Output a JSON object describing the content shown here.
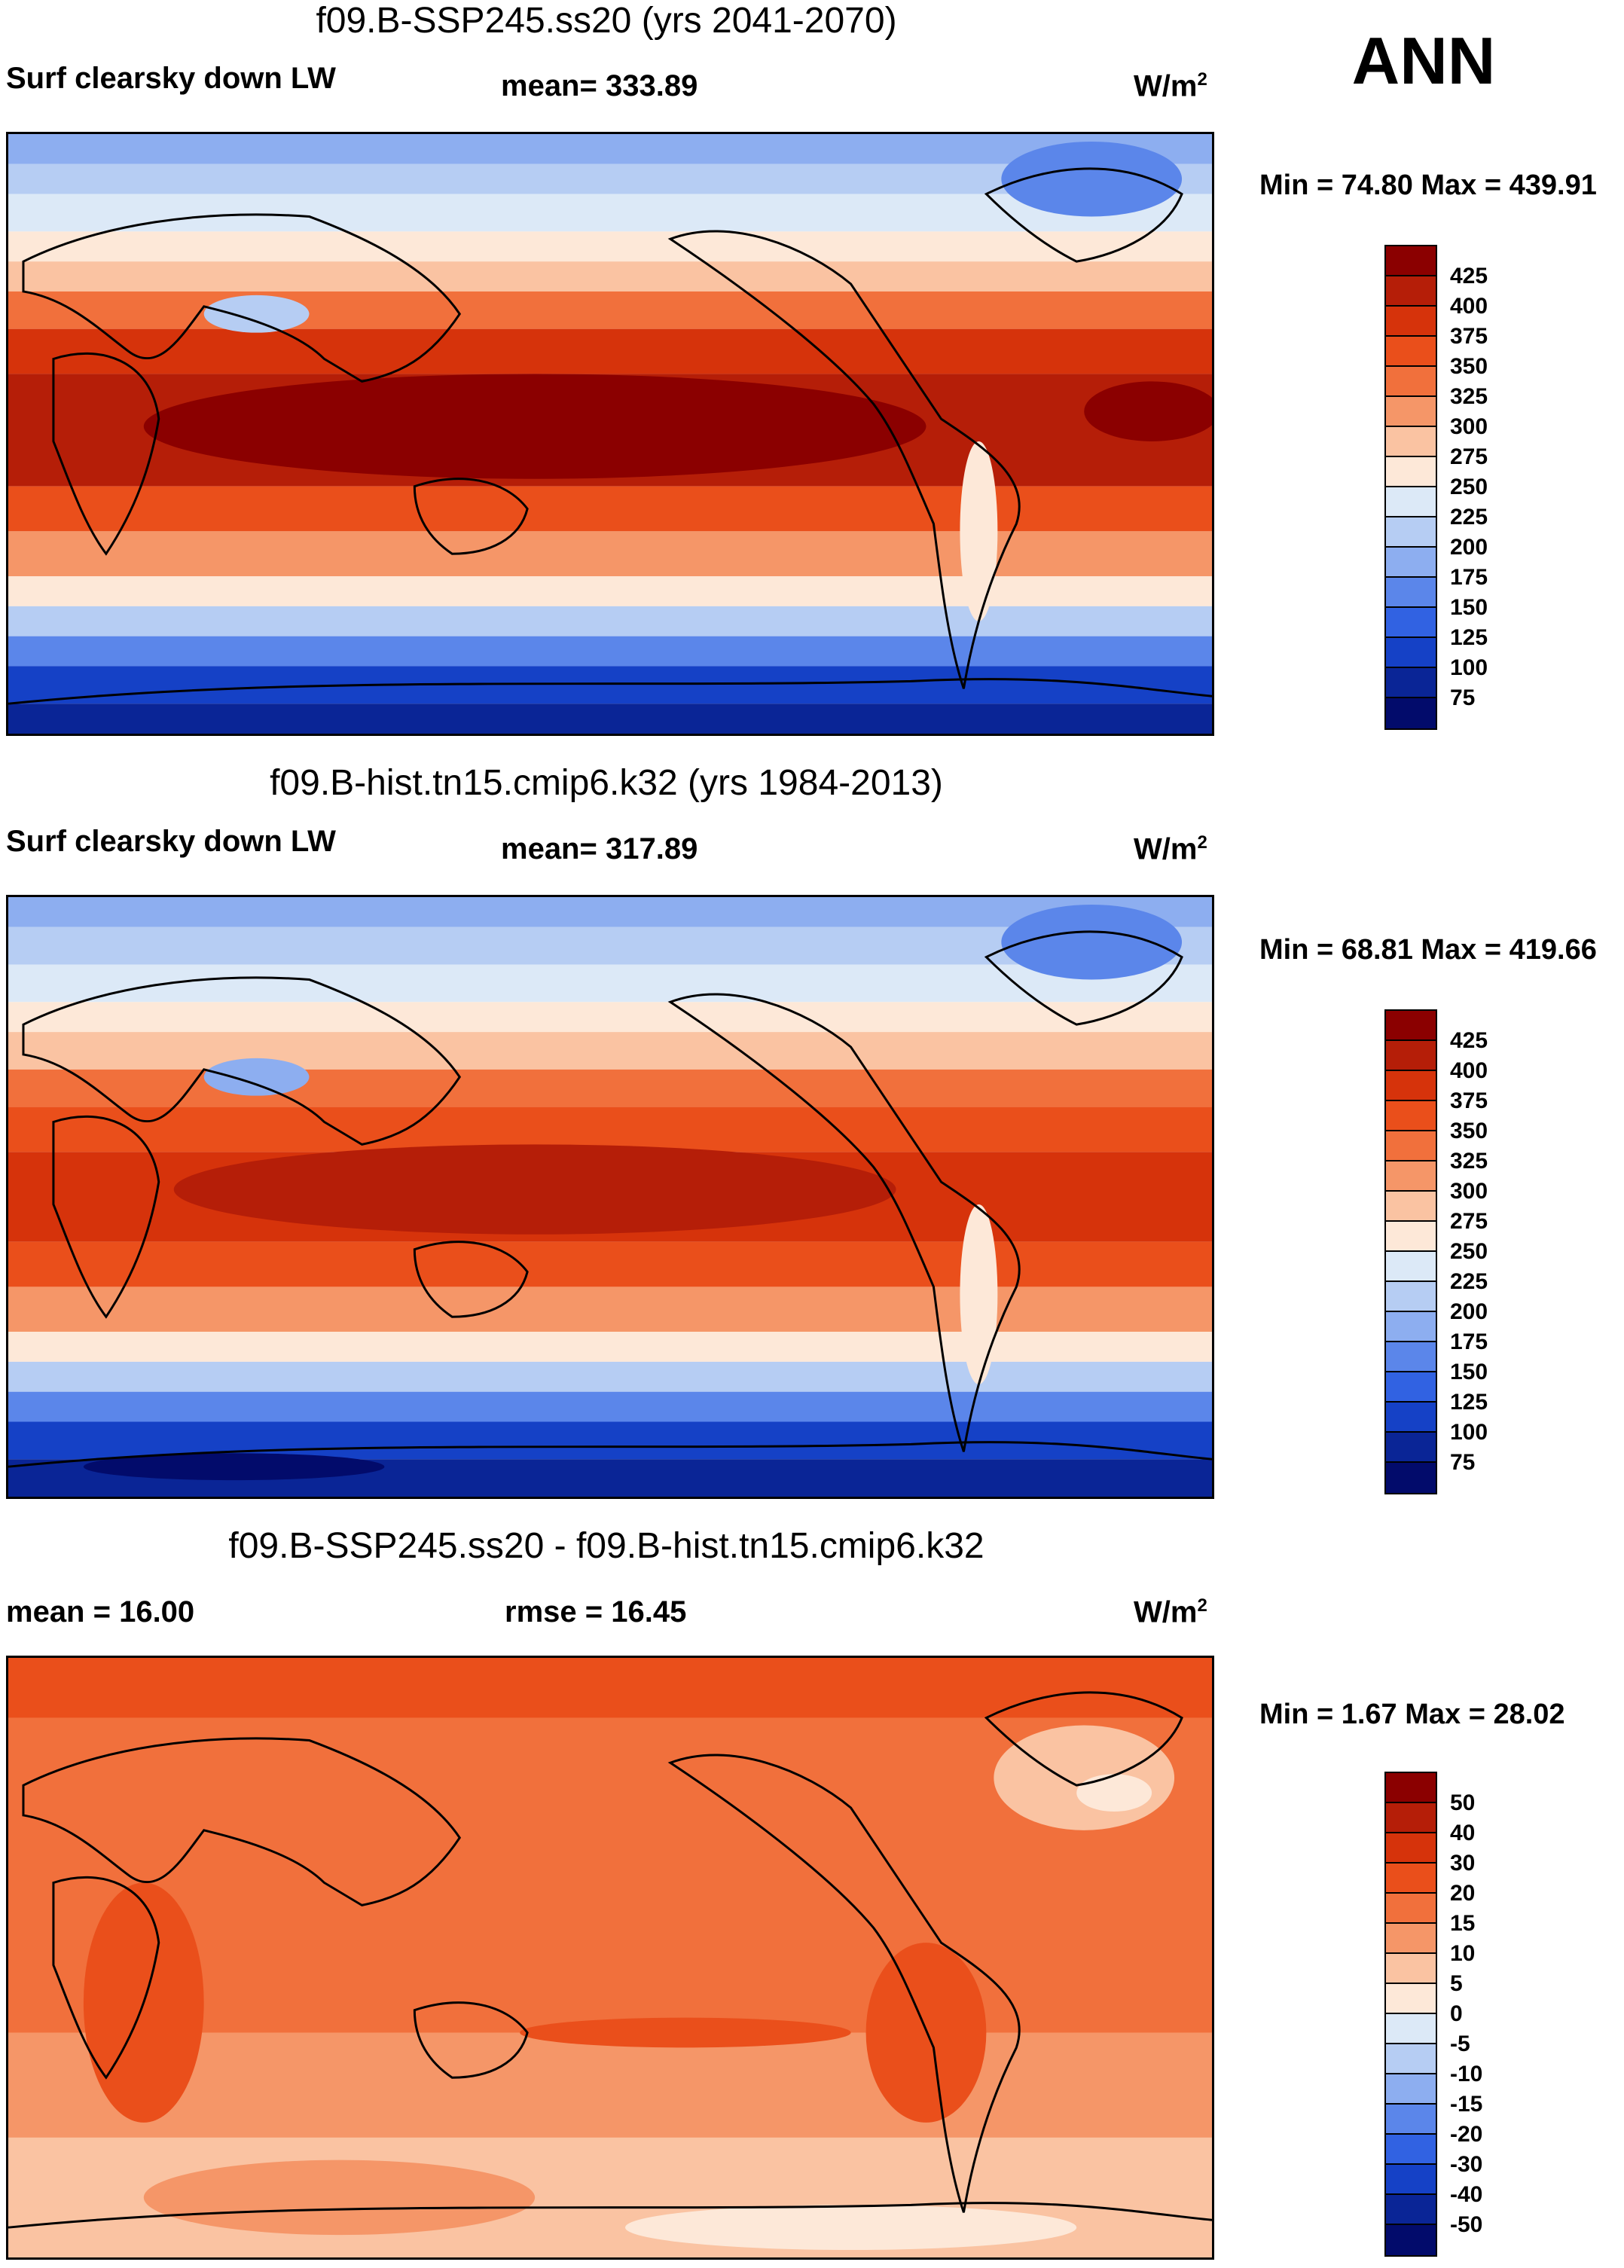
{
  "season": "ANN",
  "panels": [
    {
      "title": "f09.B-SSP245.ss20 (yrs 2041-2070)",
      "left_label": "Surf clearsky down LW",
      "center_label": "mean= 333.89",
      "units": "W/m",
      "units_exp": "2",
      "minmax": "Min =  74.80 Max = 439.91",
      "colorbar_ticks": [
        "425",
        "400",
        "375",
        "350",
        "325",
        "300",
        "275",
        "250",
        "225",
        "200",
        "175",
        "150",
        "125",
        "100",
        "75"
      ],
      "colorbar_colors": [
        "#8b0000",
        "#b51e08",
        "#d6330b",
        "#ea4f1b",
        "#f1703c",
        "#f59668",
        "#fac3a2",
        "#fde8d8",
        "#dce9f7",
        "#b6cdf3",
        "#8daef0",
        "#5b86ea",
        "#3162e2",
        "#1541c6",
        "#0a2596",
        "#020b6b"
      ]
    },
    {
      "title": "f09.B-hist.tn15.cmip6.k32 (yrs 1984-2013)",
      "left_label": "Surf clearsky down LW",
      "center_label": "mean= 317.89",
      "units": "W/m",
      "units_exp": "2",
      "minmax": "Min =  68.81 Max = 419.66",
      "colorbar_ticks": [
        "425",
        "400",
        "375",
        "350",
        "325",
        "300",
        "275",
        "250",
        "225",
        "200",
        "175",
        "150",
        "125",
        "100",
        "75"
      ],
      "colorbar_colors": [
        "#8b0000",
        "#b51e08",
        "#d6330b",
        "#ea4f1b",
        "#f1703c",
        "#f59668",
        "#fac3a2",
        "#fde8d8",
        "#dce9f7",
        "#b6cdf3",
        "#8daef0",
        "#5b86ea",
        "#3162e2",
        "#1541c6",
        "#0a2596",
        "#020b6b"
      ]
    },
    {
      "title": "f09.B-SSP245.ss20 - f09.B-hist.tn15.cmip6.k32",
      "left_label": "mean =  16.00",
      "center_label": "rmse =  16.45",
      "units": "W/m",
      "units_exp": "2",
      "minmax": "Min =   1.67 Max =  28.02",
      "colorbar_ticks": [
        "50",
        "40",
        "30",
        "20",
        "15",
        "10",
        "5",
        "0",
        "-5",
        "-10",
        "-15",
        "-20",
        "-30",
        "-40",
        "-50"
      ],
      "colorbar_colors": [
        "#8b0000",
        "#b51e08",
        "#d6330b",
        "#ea4f1b",
        "#f1703c",
        "#f59668",
        "#fac3a2",
        "#fde8d8",
        "#dce9f7",
        "#b6cdf3",
        "#8daef0",
        "#5b86ea",
        "#3162e2",
        "#1541c6",
        "#0a2596",
        "#020b6b"
      ]
    }
  ]
}
